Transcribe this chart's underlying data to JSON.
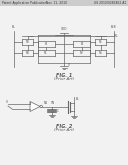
{
  "bg_color": "#f2f2f2",
  "header_color": "#cccccc",
  "line_color": "#666666",
  "text_color": "#555555",
  "fig1_label": "FIG. 1",
  "fig1_sub": "(Prior Art)",
  "fig2_label": "FIG. 2",
  "fig2_sub": "(Prior Art)",
  "header_text_left": "Patent Application Publication",
  "header_text_mid": "Nov. 11, 2010",
  "header_text_right": "US 2010/0283462 A1"
}
